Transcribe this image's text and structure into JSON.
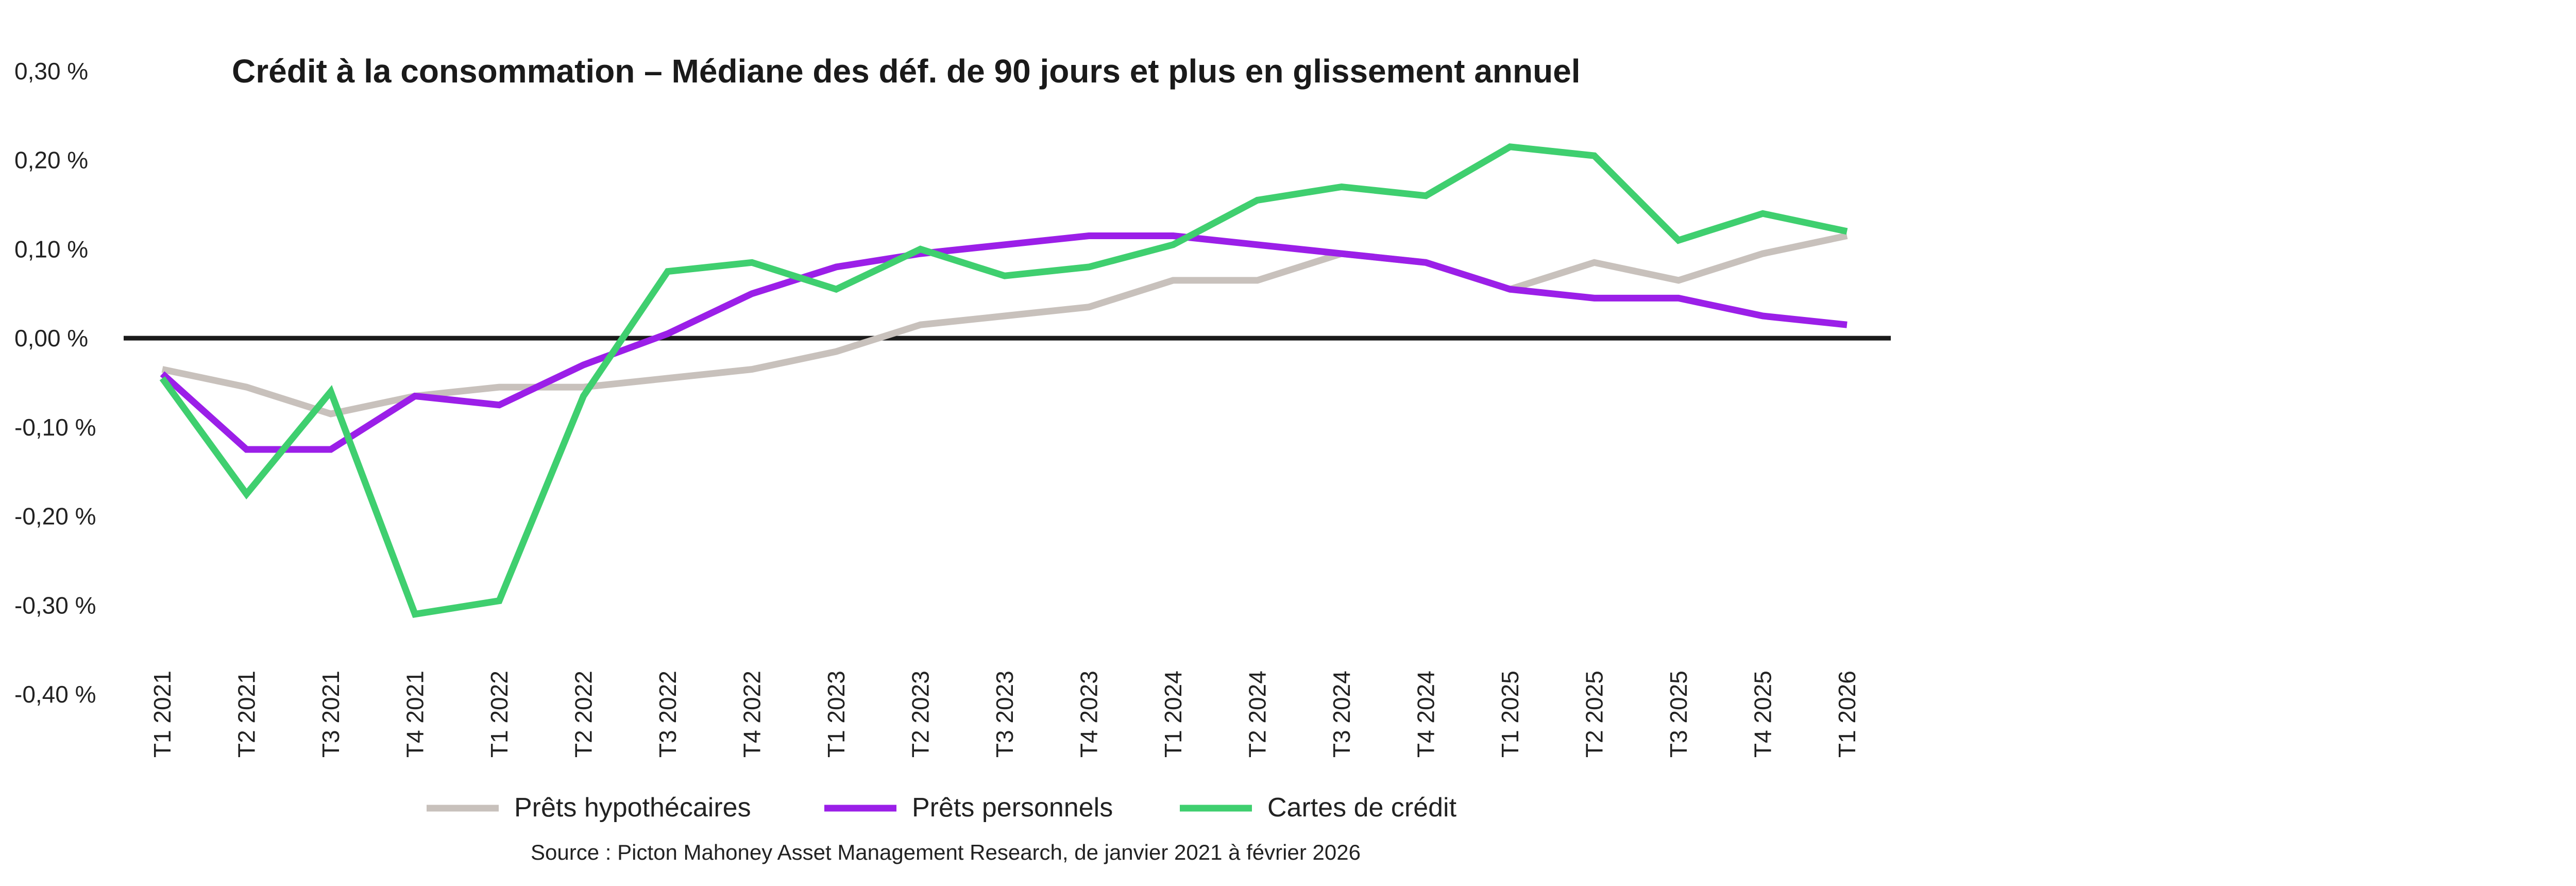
{
  "chart_data": {
    "type": "line",
    "title": "Crédit à la consommation – Médiane des déf. de 90 jours et plus en glissement annuel",
    "source": "Source : Picton Mahoney Asset Management Research, de janvier 2021 à février 2026",
    "xlabel": "",
    "ylabel": "",
    "ylim": [
      -0.4,
      0.3
    ],
    "yticks": [
      0.3,
      0.2,
      0.1,
      0.0,
      -0.1,
      -0.2,
      -0.3,
      -0.4
    ],
    "ytick_labels": [
      "0,30 %",
      "0,20 %",
      "0,10 %",
      "0,00 %",
      "-0,10 %",
      "-0,20 %",
      "-0,30 %",
      "-0,40 %"
    ],
    "grid": false,
    "legend_position": "bottom",
    "categories": [
      "T1 2021",
      "T2 2021",
      "T3 2021",
      "T4 2021",
      "T1 2022",
      "T2 2022",
      "T3 2022",
      "T4 2022",
      "T1 2023",
      "T2 2023",
      "T3 2023",
      "T4 2023",
      "T1 2024",
      "T2 2024",
      "T3 2024",
      "T4 2024",
      "T1 2025",
      "T2 2025",
      "T3 2025",
      "T4 2025",
      "T1 2026"
    ],
    "series": [
      {
        "name": "Prêts hypothécaires",
        "color": "#c8c1bc",
        "values": [
          -0.035,
          -0.055,
          -0.085,
          -0.065,
          -0.055,
          -0.055,
          -0.045,
          -0.035,
          -0.015,
          0.015,
          0.025,
          0.035,
          0.065,
          0.065,
          0.095,
          0.085,
          0.055,
          0.085,
          0.065,
          0.095,
          0.115
        ]
      },
      {
        "name": "Prêts personnels",
        "color": "#9b1fe8",
        "values": [
          -0.04,
          -0.125,
          -0.125,
          -0.065,
          -0.075,
          -0.03,
          0.005,
          0.05,
          0.08,
          0.095,
          0.105,
          0.115,
          0.115,
          0.105,
          0.095,
          0.085,
          0.055,
          0.045,
          0.045,
          0.025,
          0.015
        ]
      },
      {
        "name": "Cartes de crédit",
        "color": "#3fcf6f",
        "values": [
          -0.045,
          -0.175,
          -0.06,
          -0.31,
          -0.295,
          -0.065,
          0.075,
          0.085,
          0.055,
          0.1,
          0.07,
          0.08,
          0.105,
          0.155,
          0.17,
          0.16,
          0.215,
          0.205,
          0.11,
          0.14,
          0.12
        ]
      }
    ],
    "zero_line_color": "#1a1a1a"
  }
}
